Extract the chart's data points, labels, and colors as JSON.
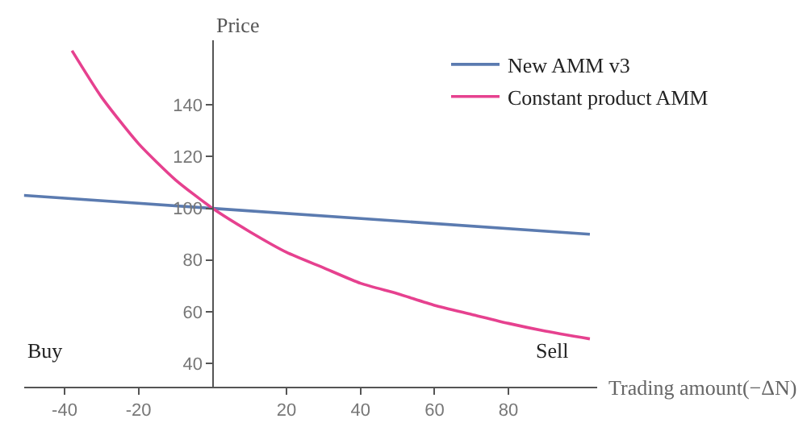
{
  "chart_data": {
    "type": "line",
    "xlabel": "Trading amount(−ΔN)",
    "ylabel": "Price",
    "annotations": [
      "Buy",
      "Sell"
    ],
    "series": [
      {
        "name": "New AMM v3",
        "color": "#5b7bb0",
        "x": [
          -51,
          0,
          102
        ],
        "values": [
          105,
          100,
          90
        ]
      },
      {
        "name": "Constant product AMM",
        "color": "#e6418f",
        "x": [
          -38,
          -30,
          -20,
          -10,
          0,
          10,
          20,
          30,
          40,
          50,
          60,
          70,
          80,
          90,
          102
        ],
        "values": [
          161,
          143,
          125,
          111,
          100,
          91,
          83,
          77,
          71,
          67,
          62.5,
          59,
          55.5,
          52.5,
          49.5
        ]
      }
    ],
    "xlim": [
      -51,
      104
    ],
    "ylim": [
      31,
      165
    ],
    "xticks": [
      -40,
      -20,
      20,
      40,
      60,
      80
    ],
    "yticks": [
      40,
      60,
      80,
      100,
      120,
      140
    ],
    "legend": "top right"
  }
}
